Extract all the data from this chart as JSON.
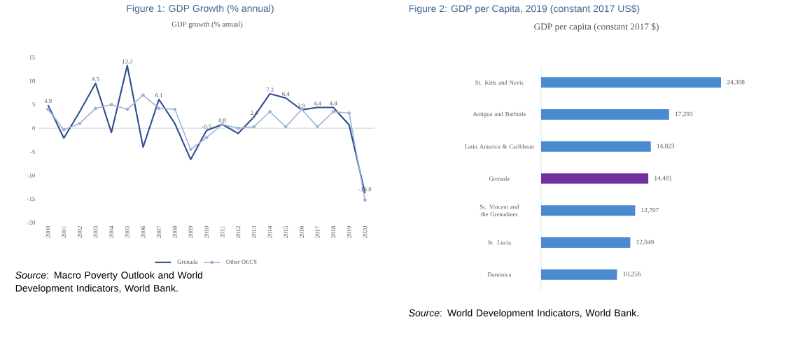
{
  "chart_data": [
    {
      "type": "line",
      "title": "Figure 1: GDP Growth (% annual)",
      "subtitle": "GDP growth (% amual)",
      "categories": [
        "2000",
        "2001",
        "2002",
        "2003",
        "2004",
        "2005",
        "2006",
        "2007",
        "2008",
        "2009",
        "2010",
        "2011",
        "2012",
        "2013",
        "2014",
        "2015",
        "2016",
        "2017",
        "2018",
        "2019",
        "2020"
      ],
      "series": [
        {
          "name": "Grenada",
          "color": "#2f4f8f",
          "marker": "none",
          "values": [
            4.9,
            -2.1,
            3.5,
            9.5,
            -0.9,
            13.3,
            -4.0,
            6.1,
            1.0,
            -6.6,
            -0.5,
            0.8,
            -1.1,
            2.4,
            7.3,
            6.4,
            3.9,
            4.4,
            4.4,
            0.7,
            -13.8
          ],
          "value_labels": [
            "4.9",
            null,
            null,
            "9.5",
            null,
            "13.3",
            null,
            "6.1",
            null,
            null,
            "-0.5",
            "0.8",
            null,
            "2.4",
            "7.3",
            "6.4",
            "3.9",
            "4.4",
            "4.4",
            null,
            "-13.8"
          ]
        },
        {
          "name": "Other OECS",
          "color": "#9fb3d9",
          "marker": "circle",
          "values": [
            4.0,
            -0.3,
            1.0,
            4.2,
            5.0,
            4.0,
            7.0,
            4.2,
            4.0,
            -4.5,
            -2.0,
            0.8,
            0.0,
            0.3,
            3.5,
            0.3,
            4.0,
            0.3,
            3.5,
            3.2,
            -15.2
          ]
        }
      ],
      "ylim": [
        -20,
        15
      ],
      "yticks": [
        -20,
        -15,
        -10,
        -5,
        0,
        5,
        10,
        15
      ],
      "legend": "bottom",
      "annotations": [
        "*Source*: Macro Poverty Outlook and World Development Indicators, World Bank."
      ]
    },
    {
      "type": "bar",
      "orientation": "horizontal",
      "title": "Figure 2: GDP per Capita, 2019 (constant 2017 US$)",
      "subtitle": "GDP per capita (constant 2017 $)",
      "categories": [
        "St. Kitts and Nevis",
        "Antigua and Barbuda",
        "Latin America & Caribbean",
        "Grenada",
        "St. Vincent and the Grenadines",
        "St. Lucia",
        "Dominica"
      ],
      "values": [
        24308,
        17293,
        14823,
        14481,
        12707,
        12049,
        10256
      ],
      "colors": [
        "#4a8ad0",
        "#4a8ad0",
        "#4a8ad0",
        "#7030a0",
        "#4a8ad0",
        "#4a8ad0",
        "#4a8ad0"
      ],
      "value_labels": [
        "24,308",
        "17,293",
        "14,823",
        "14,481",
        "12,707",
        "12,049",
        "10,256"
      ],
      "annotations": [
        "*Source*: World Development Indicators, World Bank."
      ]
    }
  ]
}
